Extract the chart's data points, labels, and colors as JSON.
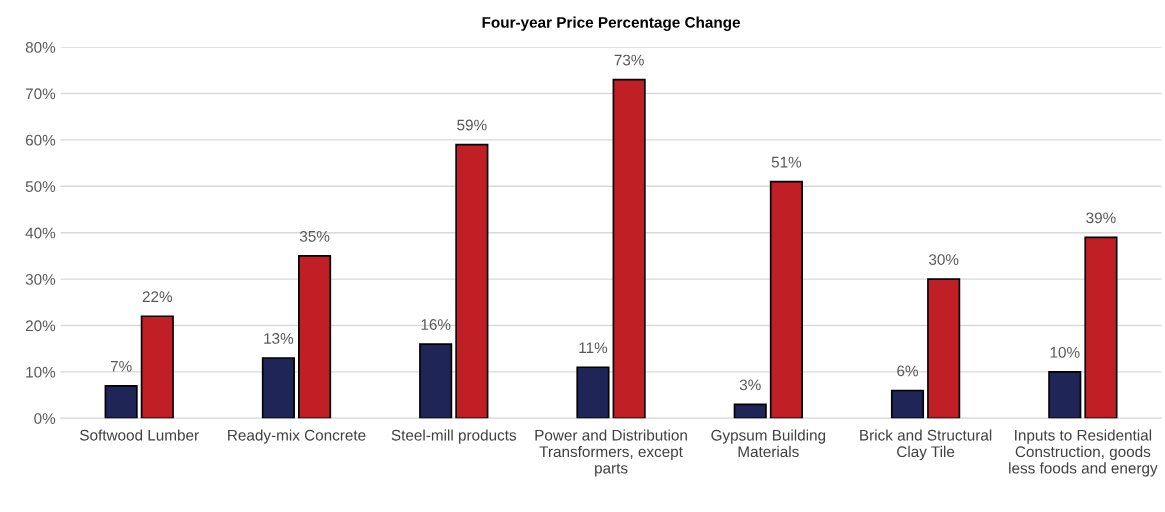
{
  "chart_data": {
    "type": "bar",
    "title": "Four-year Price Percentage Change",
    "categories": [
      "Softwood Lumber",
      "Ready-mix Concrete",
      "Steel-mill products",
      "Power and Distribution Transformers, except parts",
      "Gypsum Building Materials",
      "Brick and Structural Clay Tile",
      "Inputs to Residential Construction, goods less foods and energy"
    ],
    "series": [
      {
        "color": "#1f2557",
        "values": [
          7,
          13,
          16,
          11,
          3,
          6,
          10
        ],
        "value_labels": [
          "7%",
          "13%",
          "16%",
          "11%",
          "3%",
          "6%",
          "10%"
        ]
      },
      {
        "color": "#c01f26",
        "values": [
          22,
          35,
          59,
          73,
          51,
          30,
          39
        ],
        "value_labels": [
          "22%",
          "35%",
          "59%",
          "73%",
          "51%",
          "30%",
          "39%"
        ]
      }
    ],
    "ylim": [
      0,
      80
    ],
    "yticks": [
      {
        "value": 0,
        "label": "0%"
      },
      {
        "value": 10,
        "label": "10%"
      },
      {
        "value": 20,
        "label": "20%"
      },
      {
        "value": 30,
        "label": "30%"
      },
      {
        "value": 40,
        "label": "40%"
      },
      {
        "value": 50,
        "label": "50%"
      },
      {
        "value": 60,
        "label": "60%"
      },
      {
        "value": 70,
        "label": "70%"
      },
      {
        "value": 80,
        "label": "80%"
      }
    ],
    "grid": "y"
  }
}
